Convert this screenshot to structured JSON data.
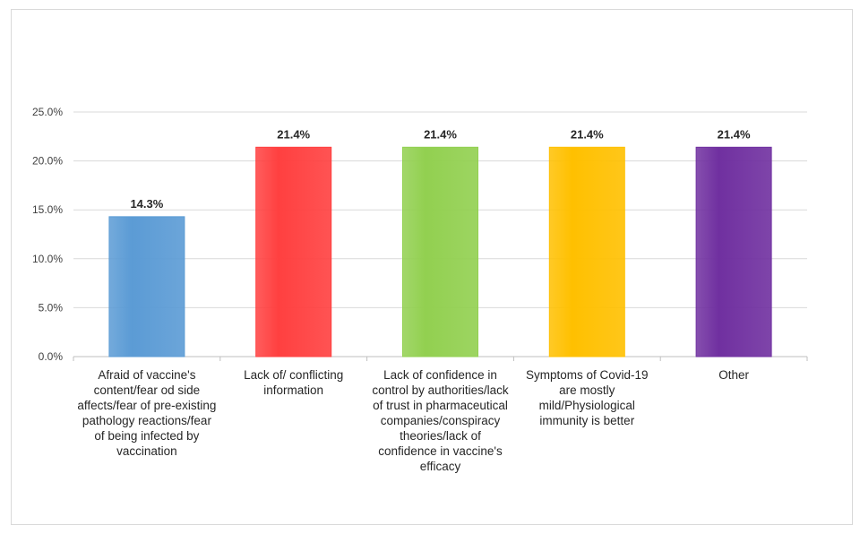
{
  "chart_data": {
    "type": "bar",
    "categories": [
      "Afraid of vaccine's content/fear od side affects/fear of pre-existing pathology reactions/fear of being infected by vaccination",
      "Lack of/ conflicting information",
      "Lack of confidence in control by authorities/lack of trust in pharmaceutical companies/conspiracy theories/lack of confidence in vaccine's efficacy",
      "Symptoms of Covid-19 are mostly mild/Physiological immunity is better",
      "Other"
    ],
    "values": [
      14.3,
      21.4,
      21.4,
      21.4,
      21.4
    ],
    "data_labels": [
      "14.3%",
      "21.4%",
      "21.4%",
      "21.4%",
      "21.4%"
    ],
    "colors": [
      "#5b9bd5",
      "#ff4040",
      "#92d050",
      "#ffc000",
      "#7030a0"
    ],
    "ylim": [
      0,
      25
    ],
    "yticks": [
      0,
      5,
      10,
      15,
      20,
      25
    ],
    "ytick_labels": [
      "0.0%",
      "5.0%",
      "10.0%",
      "15.0%",
      "20.0%",
      "25.0%"
    ],
    "grid": true,
    "title": "",
    "xlabel": "",
    "ylabel": ""
  }
}
